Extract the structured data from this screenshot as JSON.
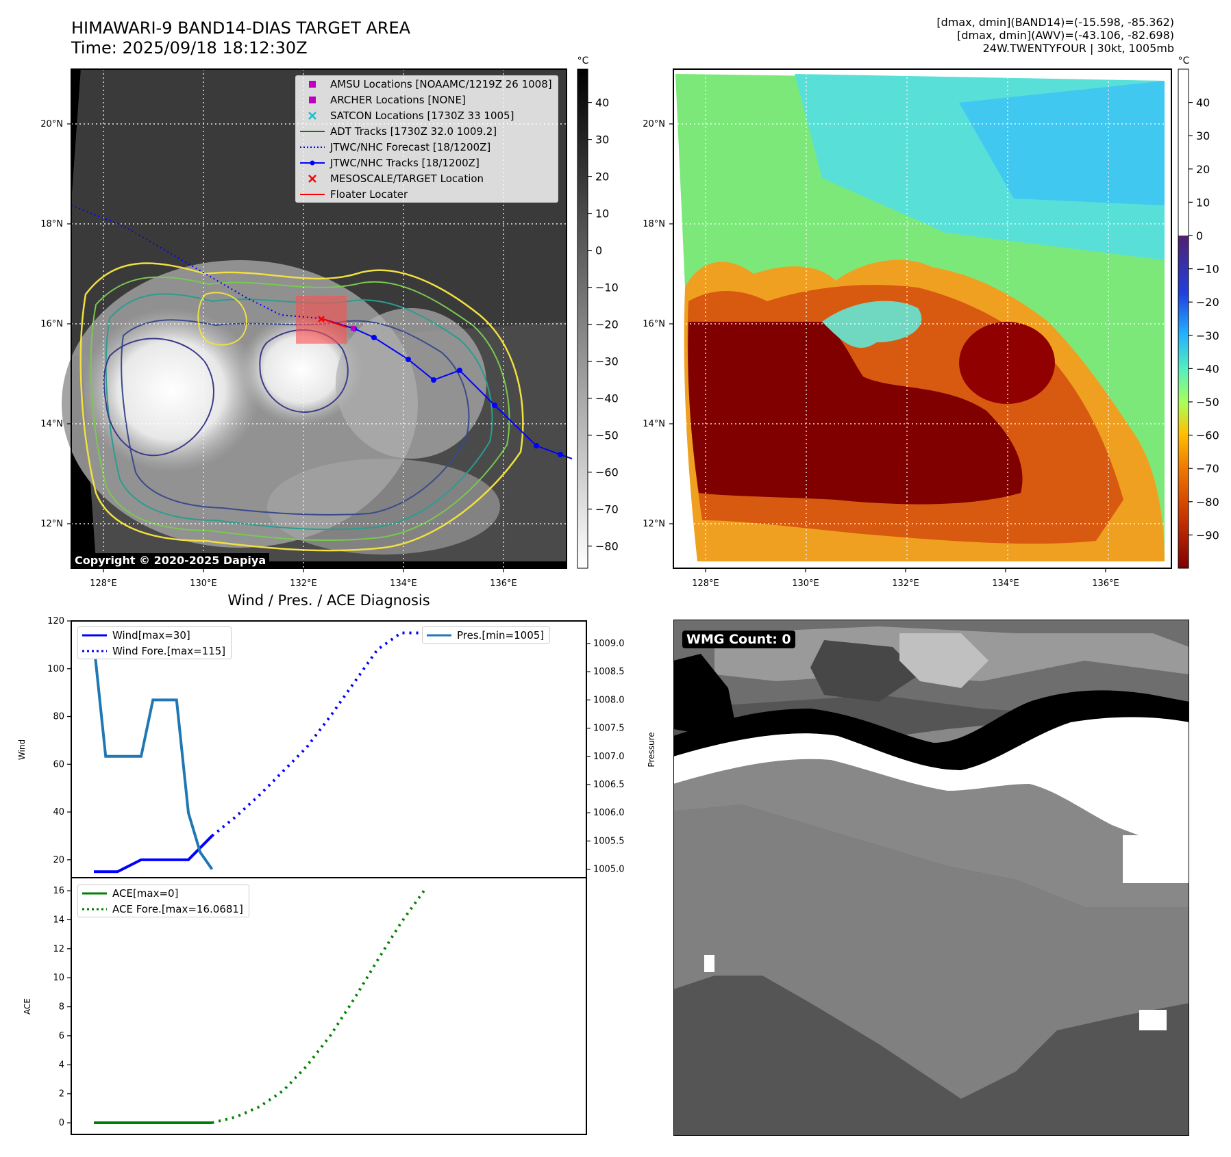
{
  "header": {
    "title_line1": "HIMAWARI-9 BAND14-DIAS TARGET AREA",
    "title_line2": "Time: 2025/09/18 18:12:30Z",
    "info_line1": "[dmax, dmin](BAND14)=(-15.598, -85.362)",
    "info_line2": "[dmax, dmin](AWV)=(-43.106, -82.698)",
    "info_line3": "24W.TWENTYFOUR | 30kt, 1005mb"
  },
  "map": {
    "lat_labels": [
      "20°N",
      "18°N",
      "16°N",
      "14°N",
      "12°N"
    ],
    "lat_values": [
      20,
      18,
      16,
      14,
      12
    ],
    "lon_labels": [
      "128°E",
      "130°E",
      "132°E",
      "134°E",
      "136°E"
    ],
    "lon_values": [
      128,
      130,
      132,
      134,
      136
    ],
    "copyright": "Copyright © 2020-2025 Dapiya"
  },
  "legend": {
    "items": [
      {
        "label": "AMSU Locations [NOAAMC/1219Z 26 1008]",
        "symbol": "square",
        "color": "#c000c0"
      },
      {
        "label": "ARCHER Locations [NONE]",
        "symbol": "square",
        "color": "#c000c0"
      },
      {
        "label": "SATCON Locations [1730Z 33 1005]",
        "symbol": "x",
        "color": "#17becf"
      },
      {
        "label": "ADT Tracks [1730Z 32.0 1009.2]",
        "symbol": "line",
        "color": "#008000"
      },
      {
        "label": "JTWC/NHC Forecast [18/1200Z]",
        "symbol": "dotted",
        "color": "#0000ff"
      },
      {
        "label": "JTWC/NHC Tracks [18/1200Z]",
        "symbol": "line-dot",
        "color": "#0000ff"
      },
      {
        "label": "MESOSCALE/TARGET Location",
        "symbol": "x",
        "color": "#ff0000"
      },
      {
        "label": "Floater Locater",
        "symbol": "line",
        "color": "#ff0000"
      }
    ]
  },
  "colorbar_left": {
    "unit": "°C",
    "ticks": [
      "40",
      "30",
      "20",
      "10",
      "0",
      "−10",
      "−20",
      "−30",
      "−40",
      "−50",
      "−60",
      "−70",
      "−80"
    ],
    "tick_values": [
      40,
      30,
      20,
      10,
      0,
      -10,
      -20,
      -30,
      -40,
      -50,
      -60,
      -70,
      -80
    ],
    "range": [
      -86,
      49
    ]
  },
  "colorbar_right": {
    "unit": "°C",
    "ticks": [
      "40",
      "30",
      "20",
      "10",
      "0",
      "−10",
      "−20",
      "−30",
      "−40",
      "−50",
      "−60",
      "−70",
      "−80",
      "−90"
    ],
    "tick_values": [
      40,
      30,
      20,
      10,
      0,
      -10,
      -20,
      -30,
      -40,
      -50,
      -60,
      -70,
      -80,
      -90
    ],
    "range": [
      -100,
      50
    ]
  },
  "chart_data": [
    {
      "type": "line",
      "title": "Wind / Pres. / ACE Diagnosis",
      "ylabel": "Wind",
      "ylabel_right": "Pressure",
      "ylim": [
        12.5,
        120
      ],
      "ylim_right": [
        1004.85,
        1009.4
      ],
      "y_ticks": [
        20,
        40,
        60,
        80,
        100,
        120
      ],
      "y_ticks_right": [
        "1005.0",
        "1005.5",
        "1006.0",
        "1006.5",
        "1007.0",
        "1007.5",
        "1008.0",
        "1008.5",
        "1009.0"
      ],
      "y_ticks_right_values": [
        1005.0,
        1005.5,
        1006.0,
        1006.5,
        1007.0,
        1007.5,
        1008.0,
        1008.5,
        1009.0
      ],
      "series": [
        {
          "name": "Wind[max=30]",
          "color": "#0000ff",
          "style": "solid",
          "axis": "left",
          "x": [
            0,
            1,
            2,
            3,
            4,
            5
          ],
          "y": [
            15,
            15,
            20,
            20,
            20,
            30
          ]
        },
        {
          "name": "Wind Fore.[max=115]",
          "color": "#0000ff",
          "style": "dotted",
          "axis": "left",
          "x": [
            5,
            6,
            7,
            8,
            9,
            10,
            11,
            12,
            13,
            14
          ],
          "y": [
            30,
            38,
            47,
            57,
            67,
            80,
            94,
            108,
            115,
            115
          ]
        },
        {
          "name": "Pres.[min=1005]",
          "color": "#1f77b4",
          "style": "solid",
          "axis": "right",
          "x": [
            0,
            0.5,
            2,
            2.5,
            3.5,
            4,
            4.5,
            5
          ],
          "y": [
            1009.0,
            1007.0,
            1007.0,
            1008.0,
            1008.0,
            1006.0,
            1005.3,
            1005.0
          ]
        }
      ]
    },
    {
      "type": "line",
      "ylabel": "ACE",
      "ylim": [
        -0.8,
        16.9
      ],
      "y_ticks": [
        0,
        2,
        4,
        6,
        8,
        10,
        12,
        14,
        16
      ],
      "series": [
        {
          "name": "ACE[max=0]",
          "color": "#008000",
          "style": "solid",
          "x": [
            0,
            5
          ],
          "y": [
            0,
            0
          ]
        },
        {
          "name": "ACE Fore.[max=16.0681]",
          "color": "#008000",
          "style": "dotted",
          "x": [
            5,
            6,
            7,
            8,
            9,
            10,
            11,
            12,
            13,
            14
          ],
          "y": [
            0,
            0.4,
            1.1,
            2.2,
            3.9,
            6.0,
            8.5,
            11.2,
            13.8,
            16.07
          ]
        }
      ]
    }
  ],
  "wmg": {
    "label": "WMG Count: 0"
  }
}
